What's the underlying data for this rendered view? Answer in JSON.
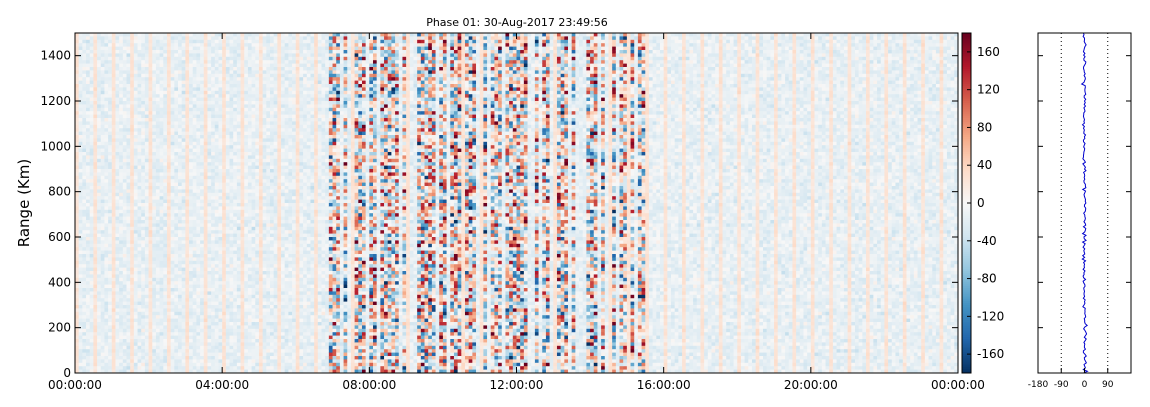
{
  "chart_data": [
    {
      "type": "heatmap",
      "title": "Phase 01: 30-Aug-2017 23:49:56",
      "ylabel": "Range (Km)",
      "xlabel": "",
      "x_ticks": [
        "00:00:00",
        "04:00:00",
        "08:00:00",
        "12:00:00",
        "16:00:00",
        "20:00:00",
        "00:00:00"
      ],
      "x_range_hours": [
        0,
        24
      ],
      "y_ticks": [
        0,
        200,
        400,
        600,
        800,
        1000,
        1200,
        1400
      ],
      "ylim": [
        0,
        1500
      ],
      "colorbar": {
        "ticks": [
          -160,
          -120,
          -80,
          -40,
          0,
          40,
          80,
          120,
          160
        ],
        "range": [
          -180,
          180
        ],
        "colormap": [
          "#053061",
          "#2166ac",
          "#4393c3",
          "#92c5de",
          "#d1e5f0",
          "#f7f7f7",
          "#fddbc7",
          "#f4a582",
          "#d6604d",
          "#b2182b",
          "#67001f"
        ]
      },
      "time_columns": 240,
      "range_rows": 100,
      "noisy_interval_hours": [
        6.8,
        15.5
      ],
      "stripe_period_hours": 0.5,
      "grid": false
    },
    {
      "type": "line",
      "title": "",
      "x_ticks": [
        -180,
        -90,
        0,
        90
      ],
      "xlim": [
        -180,
        180
      ],
      "ylim": [
        0,
        1500
      ],
      "reference_lines_x": [
        -90,
        90
      ],
      "line_color": "#0000cc",
      "grid": false
    }
  ]
}
